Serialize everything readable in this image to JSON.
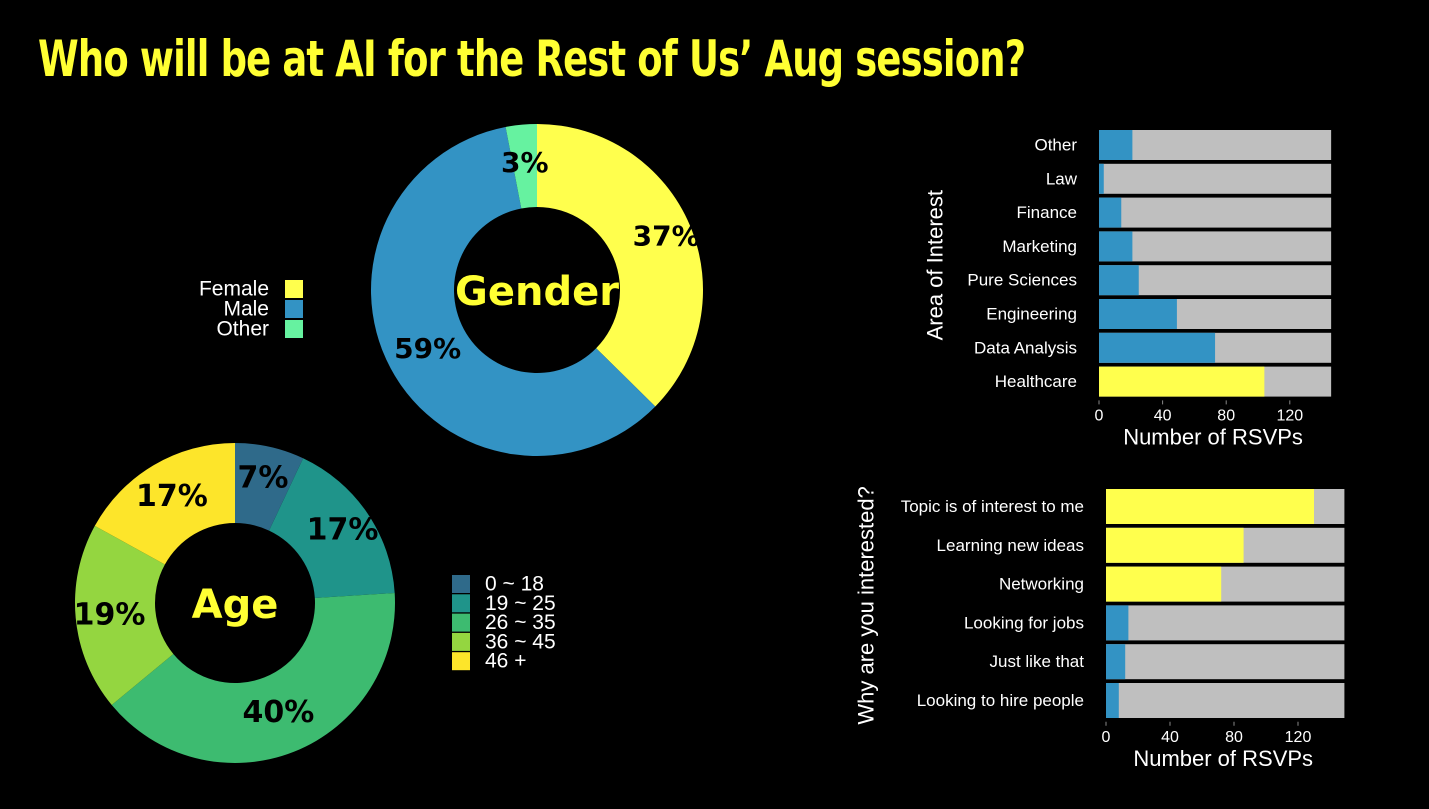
{
  "title": "Who will be at AI for the Rest of Us’ Aug session?",
  "colors": {
    "background": "#000000",
    "title": "#ffff33",
    "highlight": "#ffff4d",
    "blue": "#3393c4",
    "track": "#bfbfbf"
  },
  "chart_data": [
    {
      "type": "pie",
      "title": "Gender",
      "categories": [
        "Female",
        "Male",
        "Other"
      ],
      "values": [
        37,
        59,
        3
      ],
      "labels": [
        "37%",
        "59%",
        "3%"
      ],
      "colors": [
        "#ffff4d",
        "#3393c4",
        "#66f2a0"
      ],
      "legend": "left"
    },
    {
      "type": "pie",
      "title": "Age",
      "categories": [
        "0 ~ 18",
        "19 ~ 25",
        "26 ~ 35",
        "36 ~ 45",
        "46 +"
      ],
      "values": [
        7,
        17,
        40,
        19,
        17
      ],
      "labels": [
        "7%",
        "17%",
        "40%",
        "19%",
        "17%"
      ],
      "colors": [
        "#2f6a8a",
        "#1f948a",
        "#3dbb70",
        "#94d640",
        "#fde52a"
      ],
      "legend": "right"
    },
    {
      "type": "bar",
      "orientation": "horizontal",
      "categories": [
        "Other",
        "Law",
        "Finance",
        "Marketing",
        "Pure Sciences",
        "Engineering",
        "Data Analysis",
        "Healthcare"
      ],
      "values": [
        21,
        3,
        14,
        21,
        25,
        49,
        73,
        104
      ],
      "total": 146,
      "ylabel": "Area of Interest",
      "xlabel": "Number of RSVPs",
      "xticks": [
        0,
        40,
        80,
        120
      ],
      "xlim": [
        0,
        146
      ],
      "highlight": "Healthcare"
    },
    {
      "type": "bar",
      "orientation": "horizontal",
      "categories": [
        "Topic is of interest to me",
        "Learning new ideas",
        "Networking",
        "Looking for jobs",
        "Just like that",
        "Looking to hire people"
      ],
      "values": [
        130,
        86,
        72,
        14,
        12,
        8
      ],
      "total": 149,
      "ylabel": "Why are you interested?",
      "xlabel": "Number of RSVPs",
      "xticks": [
        0,
        40,
        80,
        120
      ],
      "xlim": [
        0,
        149
      ],
      "highlight": [
        "Topic is of interest to me",
        "Learning new ideas",
        "Networking"
      ]
    }
  ]
}
